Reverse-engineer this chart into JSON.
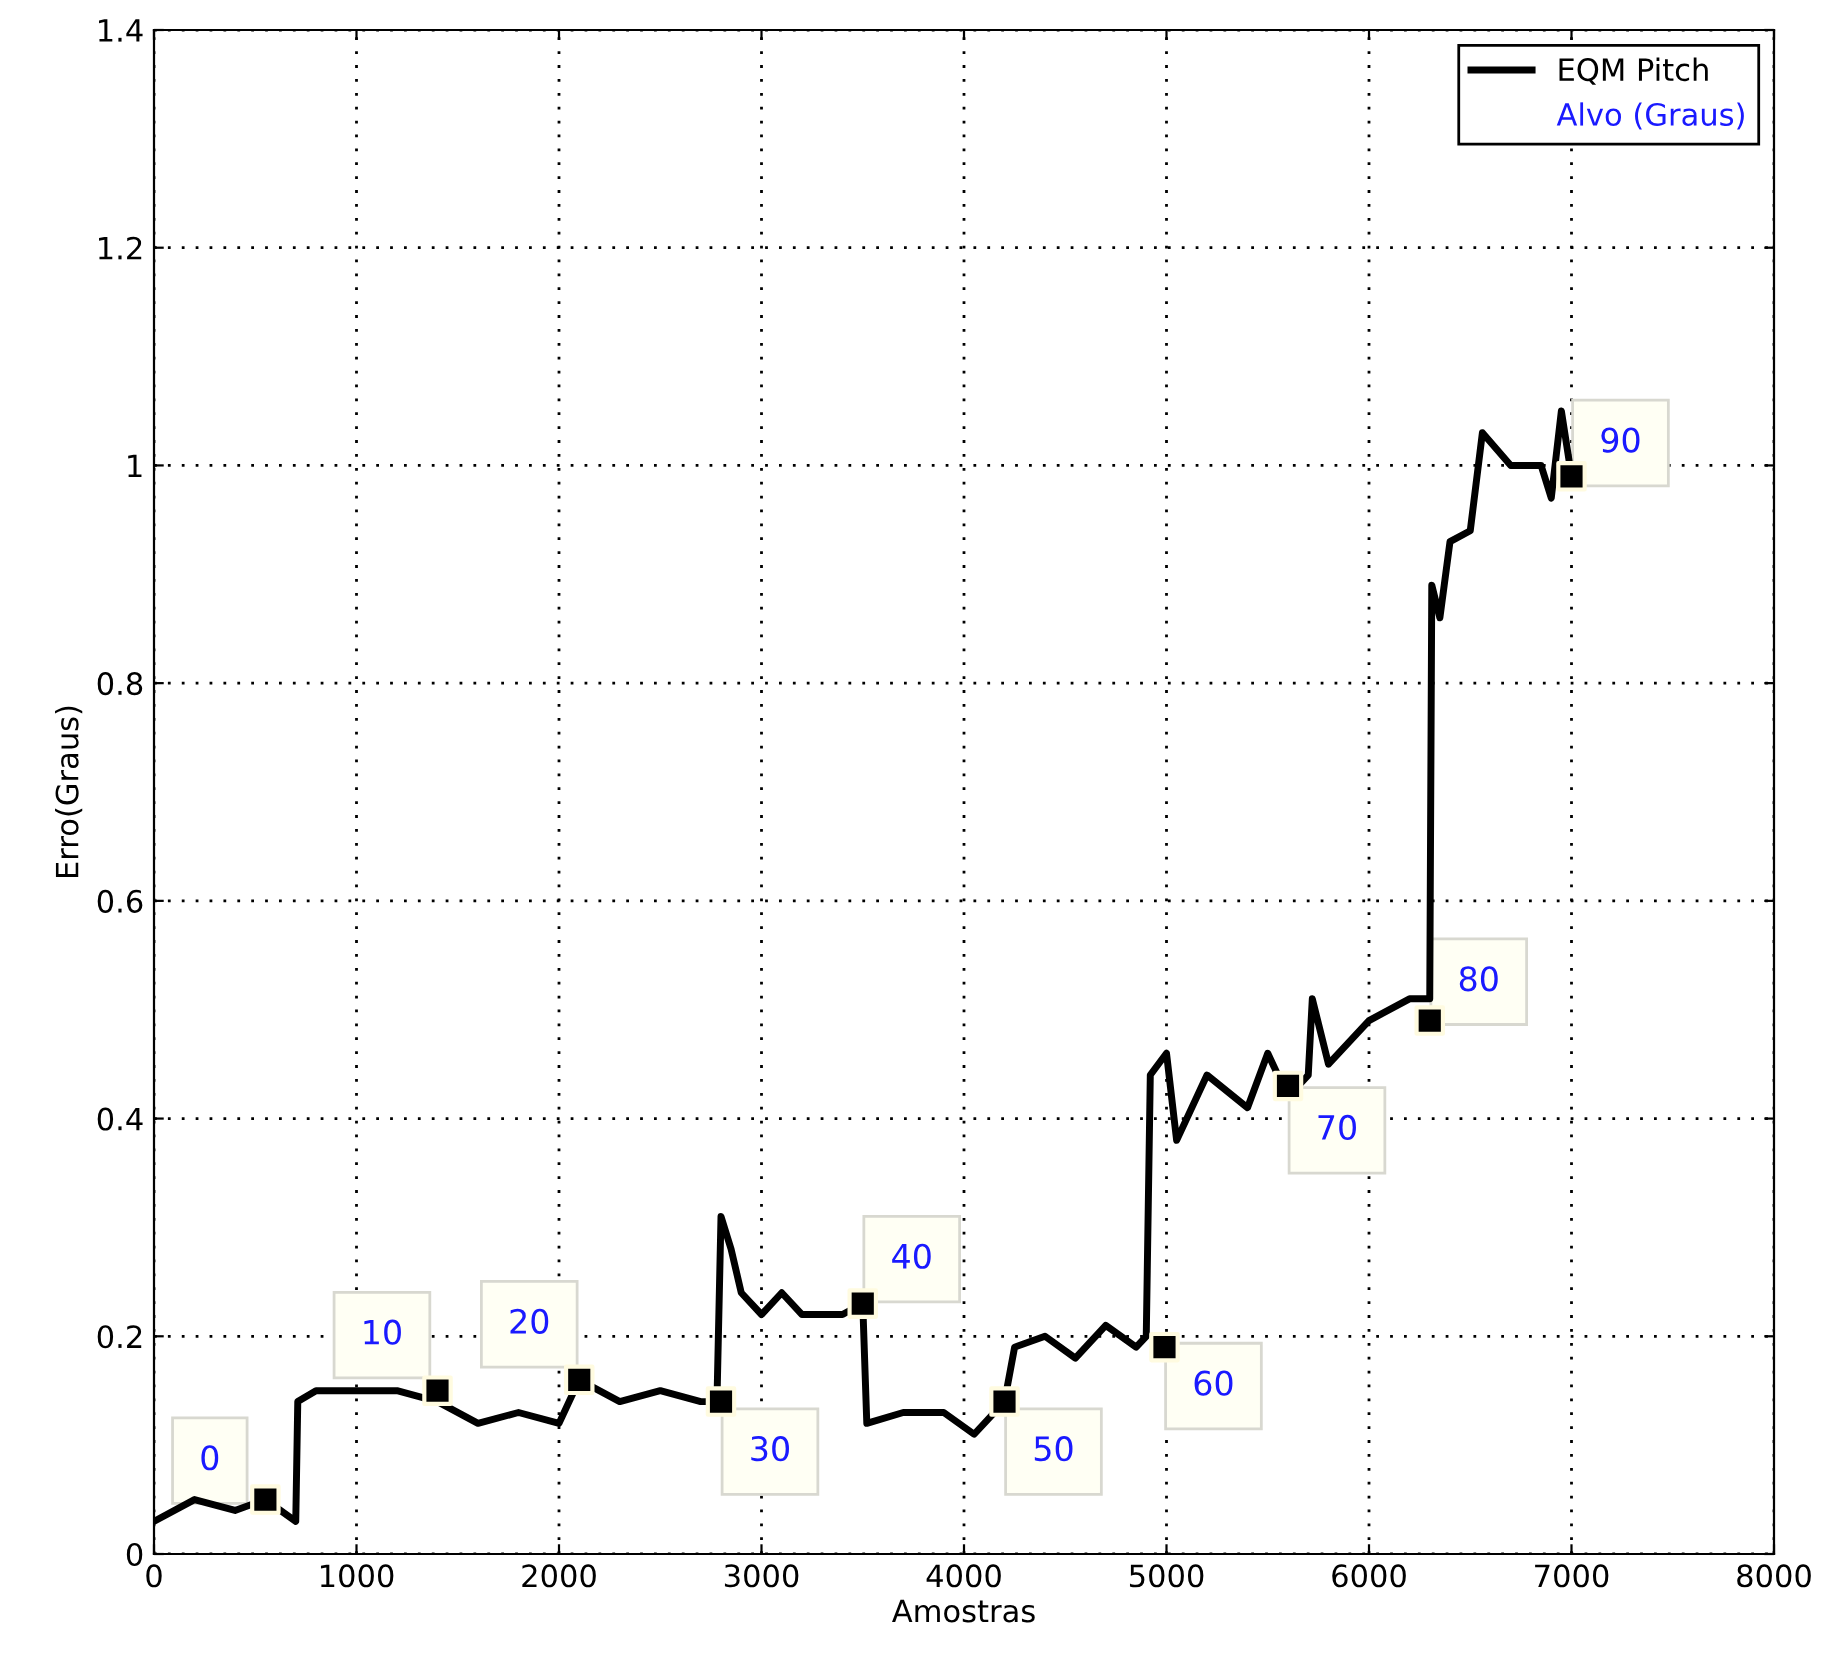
{
  "chart_data": {
    "type": "line",
    "xlabel": "Amostras",
    "ylabel": "Erro(Graus)",
    "xlim": [
      0,
      8000
    ],
    "xticks": [
      0,
      1000,
      2000,
      3000,
      4000,
      5000,
      6000,
      7000,
      8000
    ],
    "ylim": [
      0,
      1.4
    ],
    "yticks": [
      0,
      0.2,
      0.4,
      0.6,
      0.8,
      1,
      1.2,
      1.4
    ],
    "grid": true,
    "legend": "top right",
    "series": [
      {
        "name": "EQM Pitch",
        "color": "#000000",
        "marker": "none",
        "x": [
          0,
          200,
          400,
          550,
          700,
          710,
          800,
          1000,
          1200,
          1400,
          1600,
          1800,
          2000,
          2100,
          2300,
          2500,
          2700,
          2780,
          2800,
          2850,
          2900,
          3000,
          3100,
          3200,
          3400,
          3500,
          3520,
          3700,
          3900,
          4050,
          4200,
          4250,
          4400,
          4550,
          4700,
          4850,
          4900,
          4920,
          5000,
          5050,
          5200,
          5400,
          5500,
          5600,
          5700,
          5720,
          5800,
          6000,
          6200,
          6300,
          6310,
          6350,
          6400,
          6500,
          6560,
          6700,
          6850,
          6900,
          6950,
          7000
        ],
        "values": [
          0.03,
          0.05,
          0.04,
          0.05,
          0.03,
          0.14,
          0.15,
          0.15,
          0.15,
          0.14,
          0.12,
          0.13,
          0.12,
          0.16,
          0.14,
          0.15,
          0.14,
          0.14,
          0.31,
          0.28,
          0.24,
          0.22,
          0.24,
          0.22,
          0.22,
          0.23,
          0.12,
          0.13,
          0.13,
          0.11,
          0.14,
          0.19,
          0.2,
          0.18,
          0.21,
          0.19,
          0.2,
          0.44,
          0.46,
          0.38,
          0.44,
          0.41,
          0.46,
          0.42,
          0.44,
          0.51,
          0.45,
          0.49,
          0.51,
          0.51,
          0.89,
          0.86,
          0.93,
          0.94,
          1.03,
          1.0,
          1.0,
          0.97,
          1.05,
          0.99
        ]
      },
      {
        "name": "Alvo (Graus)",
        "color": "#000000",
        "type": "scatter",
        "marker": "square",
        "x": [
          550,
          1400,
          2100,
          2800,
          3500,
          4200,
          4990,
          5600,
          6300,
          7000
        ],
        "values": [
          0.05,
          0.15,
          0.16,
          0.14,
          0.23,
          0.14,
          0.19,
          0.43,
          0.49,
          0.99
        ]
      }
    ],
    "annotations": [
      {
        "text": "0",
        "x": 550,
        "y": 0.05
      },
      {
        "text": "10",
        "x": 1400,
        "y": 0.15
      },
      {
        "text": "20",
        "x": 2100,
        "y": 0.16
      },
      {
        "text": "30",
        "x": 2800,
        "y": 0.14
      },
      {
        "text": "40",
        "x": 3500,
        "y": 0.23
      },
      {
        "text": "50",
        "x": 4200,
        "y": 0.14
      },
      {
        "text": "60",
        "x": 4990,
        "y": 0.19
      },
      {
        "text": "70",
        "x": 5600,
        "y": 0.43
      },
      {
        "text": "80",
        "x": 6300,
        "y": 0.49
      },
      {
        "text": "90",
        "x": 7000,
        "y": 0.99
      }
    ]
  }
}
